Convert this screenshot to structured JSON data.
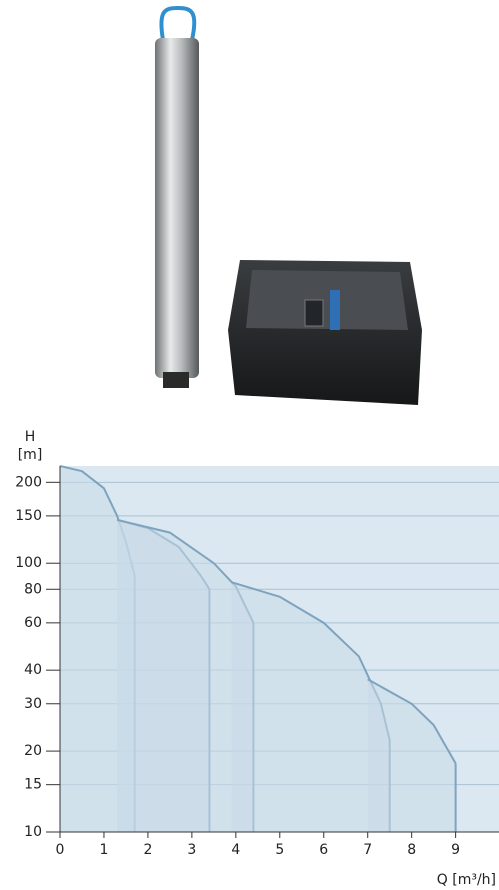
{
  "chart_data": {
    "type": "line",
    "ylabel": "H",
    "yunit": "[m]",
    "xlabel": "Q [m³/h]",
    "xlim": [
      0,
      9.6
    ],
    "xticks": [
      0,
      1,
      2,
      3,
      4,
      5,
      6,
      7,
      8,
      9
    ],
    "ylim": [
      10,
      230
    ],
    "log_y": true,
    "yticks": [
      10,
      15,
      20,
      30,
      40,
      60,
      80,
      100,
      150,
      200
    ],
    "grid": true,
    "background": "#dce8f1",
    "fill": "#c9dae7",
    "series": [
      {
        "color": "#7ea3bf",
        "x": [
          0,
          0.5,
          1.0,
          1.3,
          1.5,
          1.7
        ],
        "values": [
          230,
          220,
          190,
          150,
          120,
          90
        ]
      },
      {
        "color": "#7ea3bf",
        "x": [
          1.3,
          2.0,
          2.7,
          3.2,
          3.4
        ],
        "values": [
          145,
          135,
          115,
          90,
          80
        ]
      },
      {
        "color": "#7ea3bf",
        "x": [
          1.3,
          2.5,
          3.5,
          4.0,
          4.4
        ],
        "values": [
          145,
          130,
          100,
          82,
          60
        ]
      },
      {
        "color": "#7ea3bf",
        "x": [
          3.9,
          5.0,
          6.0,
          6.8,
          7.3,
          7.5
        ],
        "values": [
          85,
          75,
          60,
          45,
          30,
          22
        ]
      },
      {
        "color": "#7ea3bf",
        "x": [
          7.0,
          8.0,
          8.5,
          9.0
        ],
        "values": [
          37,
          30,
          25,
          18
        ]
      }
    ]
  }
}
